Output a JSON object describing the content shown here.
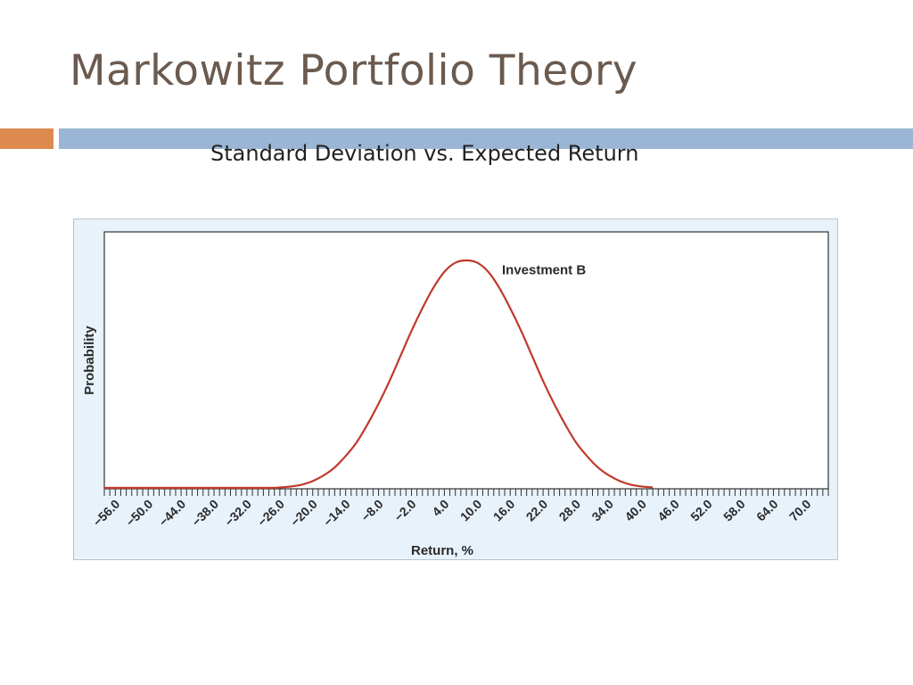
{
  "slide": {
    "title": "Markowitz Portfolio Theory",
    "subtitle": "Standard Deviation vs. Expected Return",
    "accent_orange": "#dd8a4f",
    "accent_blue": "#9ab6d4"
  },
  "chart_data": {
    "type": "line",
    "title": "",
    "xlabel": "Return, %",
    "ylabel": "Probability",
    "x_ticks": [
      "−56.0",
      "−50.0",
      "−44.0",
      "−38.0",
      "−32.0",
      "−26.0",
      "−20.0",
      "−14.0",
      "−8.0",
      "−2.0",
      "4.0",
      "10.0",
      "16.0",
      "22.0",
      "28.0",
      "34.0",
      "40.0",
      "46.0",
      "52.0",
      "58.0",
      "64.0",
      "70.0"
    ],
    "xlim": [
      -58,
      74
    ],
    "grid": false,
    "line_color": "#c0392b",
    "annotation": {
      "text": "Investment B",
      "x": 14.5,
      "y": 0.94
    },
    "series": [
      {
        "name": "Investment B",
        "x": [
          -58,
          -30,
          -26,
          -24,
          -22,
          -20,
          -18,
          -16,
          -14,
          -12,
          -10,
          -8,
          -6,
          -4,
          -2,
          0,
          2,
          4,
          6,
          8,
          10,
          12,
          14,
          16,
          18,
          20,
          22,
          24,
          26,
          28,
          30,
          32,
          34,
          36,
          38,
          40,
          42
        ],
        "y": [
          0,
          0,
          0.002,
          0.006,
          0.014,
          0.03,
          0.055,
          0.09,
          0.14,
          0.2,
          0.28,
          0.37,
          0.47,
          0.58,
          0.69,
          0.79,
          0.88,
          0.95,
          0.99,
          1.0,
          0.99,
          0.95,
          0.88,
          0.79,
          0.69,
          0.58,
          0.47,
          0.37,
          0.28,
          0.2,
          0.14,
          0.09,
          0.055,
          0.03,
          0.014,
          0.006,
          0.002
        ]
      }
    ]
  }
}
